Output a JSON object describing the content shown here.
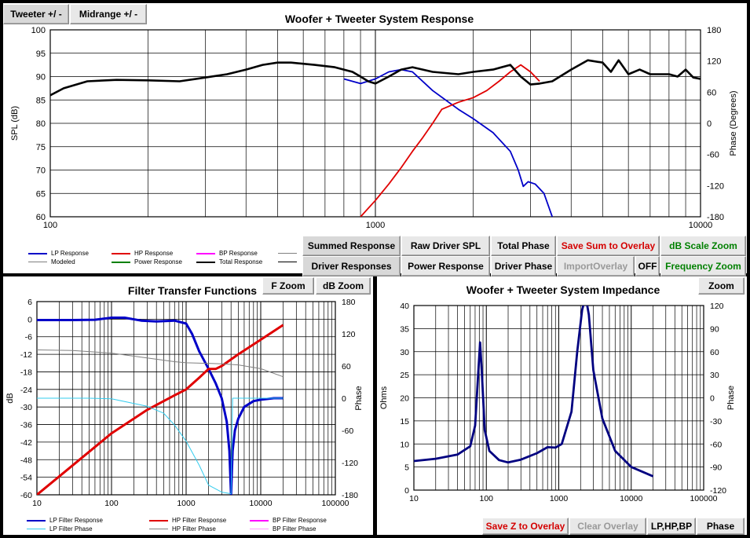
{
  "top": {
    "tab_tweeter": "Tweeter +/ -",
    "tab_midrange": "Midrange   +/ -",
    "buttons": {
      "summed": "Summed Response",
      "raw": "Raw Driver SPL",
      "total_phase": "Total Phase",
      "save_sum": "Save Sum to Overlay",
      "db_scale": "dB Scale Zoom",
      "driver_resp": "Driver Responses",
      "power": "Power Response",
      "driver_phase": "Driver Phase",
      "import_overlay": "ImportOverlay",
      "off": "OFF",
      "freq_zoom": "Frequency Zoom"
    },
    "legend": [
      "LP Response",
      "HP Response",
      "BP Response",
      "Modeled",
      "Power Response",
      "Total Response"
    ]
  },
  "filter": {
    "buttons": {
      "fzoom": "F Zoom",
      "dbzoom": "dB Zoom"
    },
    "legend": [
      "LP Filter Response",
      "HP Filter Response",
      "BP Filter Response",
      "LP Filter Phase",
      "HP Filter Phase",
      "BP Filter Phase"
    ]
  },
  "imp": {
    "buttons": {
      "zoom": "Zoom",
      "save_z": "Save Z to Overlay",
      "clear": "Clear Overlay",
      "lphpbp": "LP,HP,BP",
      "phase": "Phase"
    }
  },
  "colors": {
    "lp": "#0000c8",
    "hp": "#e00000",
    "bp": "#ff00ff",
    "total": "#000000",
    "power": "#008000",
    "modeled": "#808080",
    "lpphase": "#33ccee"
  },
  "chart_data": [
    {
      "type": "line",
      "title": "Woofer + Tweeter    System Response",
      "xlabel": "",
      "ylabel": "SPL (dB)",
      "y2label": "Phase (Degrees)",
      "xscale": "log",
      "xlim": [
        100,
        10000
      ],
      "ylim": [
        60,
        100
      ],
      "y2lim": [
        -180,
        180
      ],
      "xticks": [
        100,
        1000,
        10000
      ],
      "yticks": [
        60,
        65,
        70,
        75,
        80,
        85,
        90,
        95,
        100
      ],
      "y2ticks": [
        -180,
        -120,
        -60,
        0,
        60,
        120,
        180
      ],
      "series": [
        {
          "name": "LP Response",
          "x": [
            800,
            900,
            1000,
            1100,
            1200,
            1300,
            1500,
            1800,
            2000,
            2300,
            2600,
            2750,
            2850,
            2950,
            3100,
            3300,
            3500
          ],
          "values": [
            89.5,
            88.5,
            89.5,
            91,
            91.5,
            91,
            87,
            83,
            81,
            78,
            74,
            70,
            66.5,
            67.5,
            67,
            65,
            60
          ]
        },
        {
          "name": "HP Response",
          "x": [
            900,
            1000,
            1100,
            1200,
            1300,
            1400,
            1500,
            1600,
            1800,
            2000,
            2200,
            2400,
            2600,
            2800,
            3000,
            3200
          ],
          "values": [
            60,
            63.5,
            67,
            70.5,
            74,
            77,
            80,
            83,
            84.5,
            85.5,
            87,
            89,
            91,
            92.5,
            91,
            89
          ]
        },
        {
          "name": "Total Response",
          "x": [
            100,
            110,
            130,
            160,
            200,
            250,
            300,
            350,
            400,
            450,
            500,
            550,
            650,
            750,
            850,
            900,
            950,
            1000,
            1100,
            1200,
            1300,
            1500,
            1800,
            2000,
            2300,
            2600,
            2800,
            3000,
            3200,
            3500,
            4000,
            4500,
            5000,
            5300,
            5600,
            6000,
            6500,
            7000,
            7500,
            8000,
            8500,
            9000,
            9500,
            10000
          ],
          "values": [
            86,
            87.5,
            89,
            89.3,
            89.2,
            89,
            89.8,
            90.5,
            91.5,
            92.5,
            93,
            93,
            92.5,
            92,
            91,
            90,
            89,
            88.5,
            90,
            91.5,
            92,
            91,
            90.5,
            91,
            91.5,
            92.5,
            90,
            88.3,
            88.5,
            89,
            91.5,
            93.5,
            93,
            91,
            93.5,
            90.5,
            91.5,
            90.5,
            90.5,
            90.5,
            90,
            91.5,
            89.8,
            89.5
          ]
        }
      ]
    },
    {
      "type": "line",
      "title": "Filter Transfer Functions",
      "xlabel": "",
      "ylabel": "dB",
      "y2label": "Phase",
      "xscale": "log",
      "xlim": [
        10,
        100000
      ],
      "ylim": [
        -60,
        6
      ],
      "y2lim": [
        -180,
        180
      ],
      "xticks": [
        10,
        100,
        1000,
        10000,
        100000
      ],
      "yticks": [
        6,
        0,
        -6,
        -12,
        -18,
        -24,
        -30,
        -36,
        -42,
        -48,
        -54,
        -60
      ],
      "y2ticks": [
        180,
        120,
        60,
        0,
        -60,
        -120,
        -180
      ],
      "series": [
        {
          "name": "LP Filter Response",
          "x": [
            10,
            30,
            60,
            100,
            150,
            250,
            400,
            700,
            1000,
            1200,
            1500,
            2000,
            2500,
            3000,
            3500,
            3800,
            4000,
            4200,
            4500,
            5000,
            6000,
            8000,
            10000,
            15000,
            20000
          ],
          "values": [
            -0.3,
            -0.3,
            -0.2,
            0.5,
            0.5,
            -0.5,
            -0.8,
            -0.5,
            -1.5,
            -5,
            -11,
            -17,
            -22,
            -27,
            -35,
            -45,
            -60,
            -45,
            -38,
            -34,
            -30,
            -28,
            -27.5,
            -27,
            -27
          ]
        },
        {
          "name": "HP Filter Response",
          "x": [
            10,
            30,
            100,
            300,
            700,
            1000,
            1500,
            2000,
            2500,
            3000,
            5000,
            10000,
            20000
          ],
          "values": [
            -60,
            -50,
            -39,
            -31,
            -26,
            -24,
            -20,
            -17,
            -17,
            -16,
            -12,
            -7,
            -2
          ]
        },
        {
          "name": "LP Filter Phase",
          "x": [
            10,
            50,
            100,
            200,
            300,
            500,
            700,
            1000,
            1500,
            2000,
            3000,
            4000,
            4200,
            4500,
            5000,
            6000,
            10000,
            20000
          ],
          "values": [
            0,
            0,
            -1,
            -10,
            -15,
            -28,
            -50,
            -80,
            -125,
            -162,
            -175,
            -178,
            0,
            0,
            0,
            0,
            0,
            0
          ]
        },
        {
          "name": "HP Filter Phase",
          "x": [
            10,
            30,
            100,
            300,
            700,
            1000,
            2000,
            3000,
            5000,
            10000,
            20000
          ],
          "values": [
            90,
            89,
            84,
            75,
            68,
            66,
            65,
            64,
            62,
            55,
            40
          ]
        }
      ]
    },
    {
      "type": "line",
      "title": "Woofer + Tweeter    System Impedance",
      "xlabel": "",
      "ylabel": "Ohms",
      "y2label": "Phase",
      "xscale": "log",
      "xlim": [
        10,
        100000
      ],
      "ylim": [
        0,
        40
      ],
      "y2lim": [
        -120,
        120
      ],
      "xticks": [
        10,
        100,
        1000,
        10000,
        100000
      ],
      "yticks": [
        0,
        5,
        10,
        15,
        20,
        25,
        30,
        35,
        40
      ],
      "y2ticks": [
        -120,
        -90,
        -60,
        -30,
        0,
        30,
        60,
        90,
        120
      ],
      "series": [
        {
          "name": "Impedance",
          "x": [
            10,
            20,
            40,
            60,
            70,
            77,
            82,
            87,
            95,
            110,
            150,
            200,
            300,
            500,
            700,
            900,
            1100,
            1500,
            1800,
            2100,
            2350,
            2600,
            3000,
            4000,
            6000,
            10000,
            20000
          ],
          "values": [
            6.3,
            6.8,
            7.7,
            9.5,
            14,
            25,
            32,
            25,
            13,
            8.5,
            6.5,
            6,
            6.6,
            8,
            9.3,
            9.2,
            10,
            17,
            30,
            39,
            42,
            38,
            26,
            15.5,
            8.5,
            5,
            3
          ]
        }
      ]
    }
  ]
}
